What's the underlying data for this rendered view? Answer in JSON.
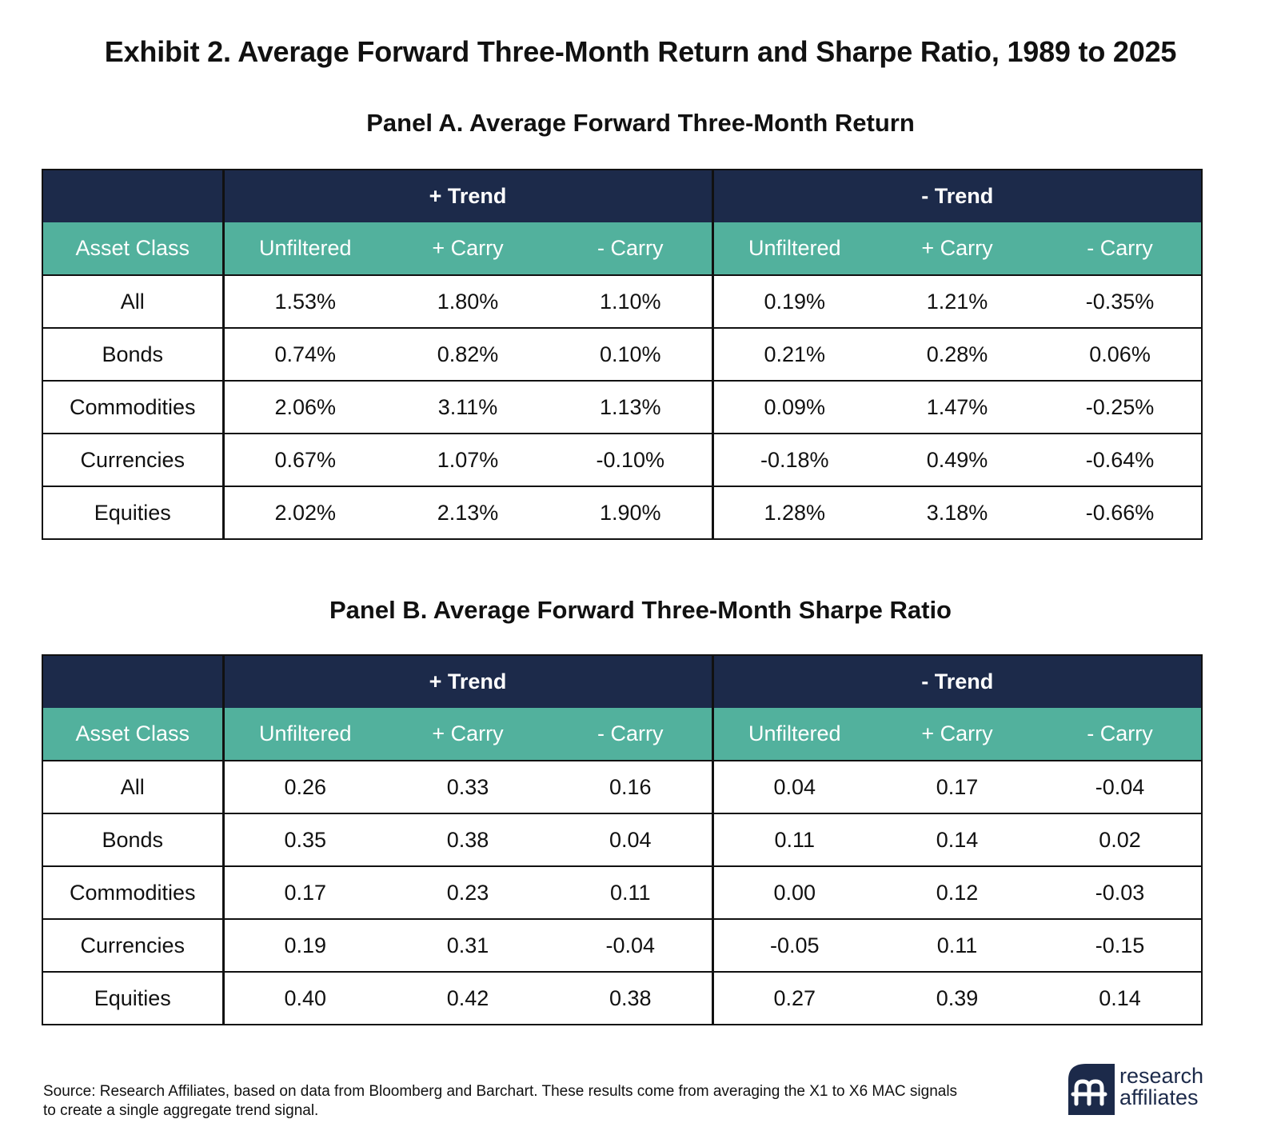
{
  "title": "Exhibit 2. Average Forward Three-Month Return and Sharpe Ratio, 1989 to 2025",
  "panels": [
    {
      "title": "Panel A. Average Forward Three-Month Return",
      "groups": [
        "+ Trend",
        "-  Trend"
      ],
      "columns": [
        "Asset Class",
        "Unfiltered",
        "+ Carry",
        "- Carry",
        "Unfiltered",
        "+ Carry",
        "- Carry"
      ],
      "rows": [
        [
          "All",
          "1.53%",
          "1.80%",
          "1.10%",
          "0.19%",
          "1.21%",
          "-0.35%"
        ],
        [
          "Bonds",
          "0.74%",
          "0.82%",
          "0.10%",
          "0.21%",
          "0.28%",
          "0.06%"
        ],
        [
          "Commodities",
          "2.06%",
          "3.11%",
          "1.13%",
          "0.09%",
          "1.47%",
          "-0.25%"
        ],
        [
          "Currencies",
          "0.67%",
          "1.07%",
          "-0.10%",
          "-0.18%",
          "0.49%",
          "-0.64%"
        ],
        [
          "Equities",
          "2.02%",
          "2.13%",
          "1.90%",
          "1.28%",
          "3.18%",
          "-0.66%"
        ]
      ]
    },
    {
      "title": "Panel B. Average Forward Three-Month Sharpe Ratio",
      "groups": [
        "+ Trend",
        "-  Trend"
      ],
      "columns": [
        "Asset Class",
        "Unfiltered",
        "+ Carry",
        "- Carry",
        "Unfiltered",
        "+ Carry",
        "- Carry"
      ],
      "rows": [
        [
          "All",
          "0.26",
          "0.33",
          "0.16",
          "0.04",
          "0.17",
          "-0.04"
        ],
        [
          "Bonds",
          "0.35",
          "0.38",
          "0.04",
          "0.11",
          "0.14",
          "0.02"
        ],
        [
          "Commodities",
          "0.17",
          "0.23",
          "0.11",
          "0.00",
          "0.12",
          "-0.03"
        ],
        [
          "Currencies",
          "0.19",
          "0.31",
          "-0.04",
          "-0.05",
          "0.11",
          "-0.15"
        ],
        [
          "Equities",
          "0.40",
          "0.42",
          "0.38",
          "0.27",
          "0.39",
          "0.14"
        ]
      ]
    }
  ],
  "source": "Source: Research Affiliates, based on data from Bloomberg and Barchart. These results come from averaging the X1 to X6 MAC signals to create a single aggregate trend signal.",
  "logo": {
    "line1": "research",
    "line2": "affiliates",
    "icon": "research-affiliates-logo-icon",
    "color": "#1c2a4a"
  },
  "colors": {
    "header_navy": "#1c2a4a",
    "header_teal": "#52b19d"
  }
}
